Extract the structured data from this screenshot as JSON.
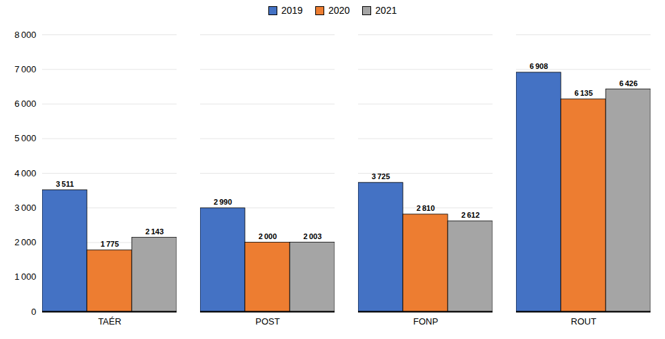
{
  "chart_data": {
    "type": "bar",
    "categories": [
      "TAÉR",
      "POST",
      "FONP",
      "ROUT"
    ],
    "series": [
      {
        "name": "2019",
        "color": "#4472C4",
        "values": [
          3511,
          2990,
          3725,
          6908
        ],
        "value_labels": [
          "3 511",
          "2 990",
          "3 725",
          "6 908"
        ]
      },
      {
        "name": "2020",
        "color": "#ED7D31",
        "values": [
          1775,
          2000,
          2810,
          6135
        ],
        "value_labels": [
          "1 775",
          "2 000",
          "2 810",
          "6 135"
        ]
      },
      {
        "name": "2021",
        "color": "#A5A5A5",
        "values": [
          2143,
          2003,
          2612,
          6426
        ],
        "value_labels": [
          "2 143",
          "2 003",
          "2 612",
          "6 426"
        ]
      }
    ],
    "ylim": [
      0,
      8000
    ],
    "yticks": [
      0,
      {
        "value": 1000,
        "label": "1 000"
      },
      {
        "value": 2000,
        "label": "2 000"
      },
      {
        "value": 3000,
        "label": "3 000"
      },
      {
        "value": 4000,
        "label": "4 000"
      },
      {
        "value": 5000,
        "label": "5 000"
      },
      {
        "value": 6000,
        "label": "6 000"
      },
      {
        "value": 7000,
        "label": "7 000"
      },
      {
        "value": 8000,
        "label": "8 000"
      }
    ],
    "grid": true,
    "legend": "upper center",
    "data_labels": true
  }
}
